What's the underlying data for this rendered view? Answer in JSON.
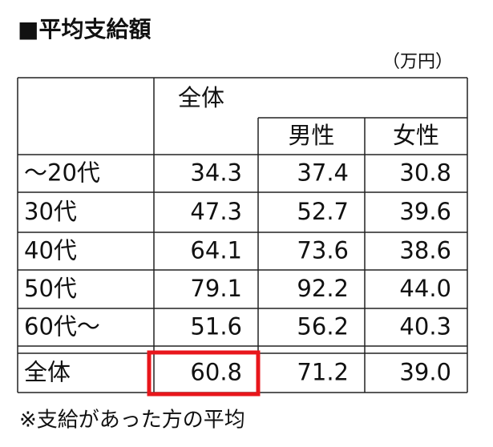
{
  "header": {
    "title": "■平均支給額",
    "unit": "（万円）"
  },
  "table": {
    "columns": [
      "全体",
      "男性",
      "女性"
    ],
    "rows": [
      [
        "～20代",
        "34.3",
        "37.4",
        "30.8"
      ],
      [
        "30代",
        "47.3",
        "52.7",
        "39.6"
      ],
      [
        "40代",
        "64.1",
        "73.6",
        "38.6"
      ],
      [
        "50代",
        "79.1",
        "92.2",
        "44.0"
      ],
      [
        "60代～",
        "51.6",
        "56.2",
        "40.3"
      ],
      [
        "全体",
        "60.8",
        "71.2",
        "39.0"
      ]
    ]
  },
  "footnote": "※支給があった方の平均"
}
